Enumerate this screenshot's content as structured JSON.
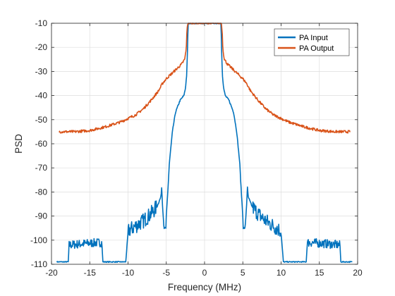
{
  "chart_data": {
    "type": "line",
    "title": "",
    "xlabel": "Frequency (MHz)",
    "ylabel": "PSD",
    "xlim": [
      -20,
      20
    ],
    "ylim": [
      -110,
      -10
    ],
    "xticks": [
      -20,
      -15,
      -10,
      -5,
      0,
      5,
      10,
      15,
      20
    ],
    "yticks": [
      -110,
      -100,
      -90,
      -80,
      -70,
      -60,
      -50,
      -40,
      -30,
      -20,
      -10
    ],
    "grid": true,
    "legend_position": "top-right",
    "series": [
      {
        "name": "PA Input",
        "color": "#0072BD",
        "noise": true,
        "x": [
          -19.3,
          -17.8,
          -17.7,
          -16.0,
          -14.0,
          -13.4,
          -13.3,
          -10.3,
          -10.0,
          -9.9,
          -8.0,
          -7.0,
          -6.2,
          -5.7,
          -5.6,
          -5.5,
          -5.3,
          -5.05,
          -5.0,
          -4.8,
          -4.6,
          -4.2,
          -3.8,
          -3.2,
          -2.7,
          -2.5,
          -2.35,
          -2.25,
          -2.15,
          2.15,
          2.25,
          2.35,
          2.5,
          2.7,
          3.2,
          3.8,
          4.2,
          4.6,
          4.8,
          5.0,
          5.05,
          5.3,
          5.5,
          5.6,
          5.7,
          6.2,
          7.0,
          8.0,
          9.9,
          10.0,
          10.3,
          13.3,
          13.4,
          14.0,
          16.0,
          17.7,
          17.8,
          19.3
        ],
        "y": [
          -109,
          -109,
          -102,
          -101.5,
          -101,
          -101,
          -109,
          -109,
          -97,
          -96,
          -92,
          -89,
          -86,
          -82,
          -78,
          -85,
          -95,
          -95,
          -90,
          -80,
          -68,
          -55,
          -47,
          -42,
          -40,
          -37,
          -32,
          -24,
          -10,
          -10,
          -24,
          -32,
          -37,
          -40,
          -42,
          -47,
          -55,
          -68,
          -80,
          -90,
          -95,
          -95,
          -85,
          -78,
          -82,
          -86,
          -89,
          -92,
          -96,
          -97,
          -109,
          -109,
          -101,
          -101,
          -101.5,
          -102,
          -109,
          -109
        ]
      },
      {
        "name": "PA Output",
        "color": "#D95319",
        "noise": false,
        "x": [
          -19.0,
          -17.0,
          -15.0,
          -13.0,
          -11.0,
          -9.0,
          -8.0,
          -7.0,
          -6.0,
          -5.5,
          -5.0,
          -4.5,
          -4.0,
          -3.5,
          -3.0,
          -2.6,
          -2.4,
          -2.3,
          -2.2,
          2.2,
          2.3,
          2.4,
          2.6,
          3.0,
          3.5,
          4.0,
          4.5,
          5.0,
          5.5,
          6.0,
          7.0,
          8.0,
          9.0,
          11.0,
          13.0,
          15.0,
          17.0,
          19.0
        ],
        "y": [
          -55,
          -55,
          -54.5,
          -53,
          -51,
          -48,
          -45.5,
          -42,
          -38,
          -35,
          -33,
          -31.5,
          -30,
          -28.5,
          -27,
          -25,
          -21,
          -13,
          -10,
          -10,
          -13,
          -21,
          -25,
          -27,
          -28.5,
          -30,
          -31.5,
          -33,
          -35,
          -38,
          -42,
          -45.5,
          -48,
          -51,
          -53,
          -54.5,
          -55,
          -55
        ]
      }
    ]
  }
}
